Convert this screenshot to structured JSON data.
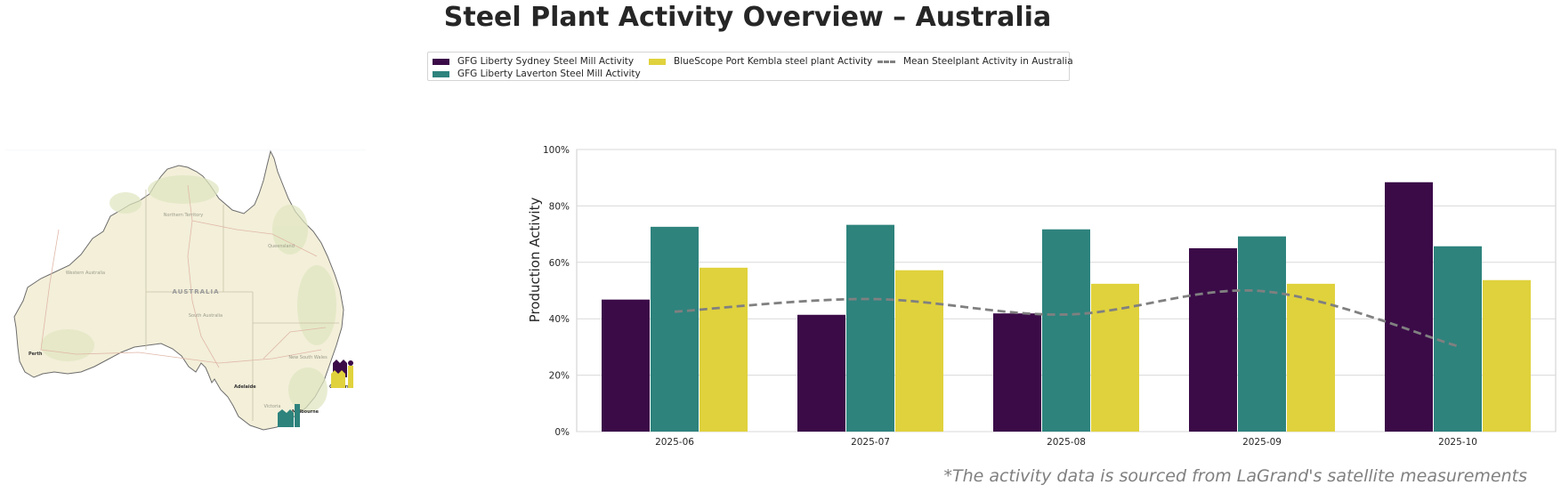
{
  "title": "Steel Plant Activity Overview – Australia",
  "footnote": "*The activity data is sourced from LaGrand's satellite measurements",
  "legend": [
    {
      "label": "GFG Liberty Sydney Steel Mill Activity",
      "color": "#3b0b48",
      "kind": "bar"
    },
    {
      "label": "GFG Liberty Laverton Steel Mill Activity",
      "color": "#2e837d",
      "kind": "bar"
    },
    {
      "label": "BlueScope Port Kembla steel plant Activity",
      "color": "#e0d23c",
      "kind": "bar"
    },
    {
      "label": "Mean Steelplant Activity in Australia",
      "color": "#808080",
      "kind": "dashed-line"
    }
  ],
  "map": {
    "country_label": "AUSTRALIA",
    "region_labels": [
      "Western Australia",
      "Northern Territory",
      "Queensland",
      "South Australia",
      "New South Wales",
      "Victoria"
    ],
    "city_labels": [
      "Perth",
      "Adelaide",
      "Canberra",
      "Melbourne"
    ],
    "markers": [
      {
        "name": "GFG Liberty Sydney Steel Mill",
        "color": "#3b0b48",
        "icon": "factory-icon"
      },
      {
        "name": "BlueScope Port Kembla steel plant",
        "color": "#e0d23c",
        "icon": "factory-icon"
      },
      {
        "name": "GFG Liberty Laverton Steel Mill",
        "color": "#2e837d",
        "icon": "factory-icon"
      }
    ]
  },
  "chart_data": {
    "type": "bar",
    "title": "",
    "xlabel": "",
    "ylabel": "Production Activity",
    "ylim": [
      0,
      100
    ],
    "yticks": [
      "0%",
      "20%",
      "40%",
      "60%",
      "80%",
      "100%"
    ],
    "grid": "horizontal",
    "legend_position": "top-center",
    "categories": [
      "2025-06",
      "2025-07",
      "2025-08",
      "2025-09",
      "2025-10"
    ],
    "series": [
      {
        "name": "GFG Liberty Sydney Steel Mill Activity",
        "color": "#3b0b48",
        "values": [
          46.8,
          41.4,
          41.9,
          65.0,
          88.4
        ]
      },
      {
        "name": "GFG Liberty Laverton Steel Mill Activity",
        "color": "#2e837d",
        "values": [
          72.6,
          73.3,
          71.7,
          69.2,
          65.7
        ]
      },
      {
        "name": "BlueScope Port Kembla steel plant Activity",
        "color": "#e0d23c",
        "values": [
          58.1,
          57.2,
          52.4,
          52.4,
          53.7
        ]
      }
    ],
    "line_series": {
      "name": "Mean Steelplant Activity in Australia",
      "color": "#808080",
      "style": "dashed",
      "values": [
        42.5,
        47.0,
        41.5,
        49.8,
        30.3
      ]
    }
  }
}
